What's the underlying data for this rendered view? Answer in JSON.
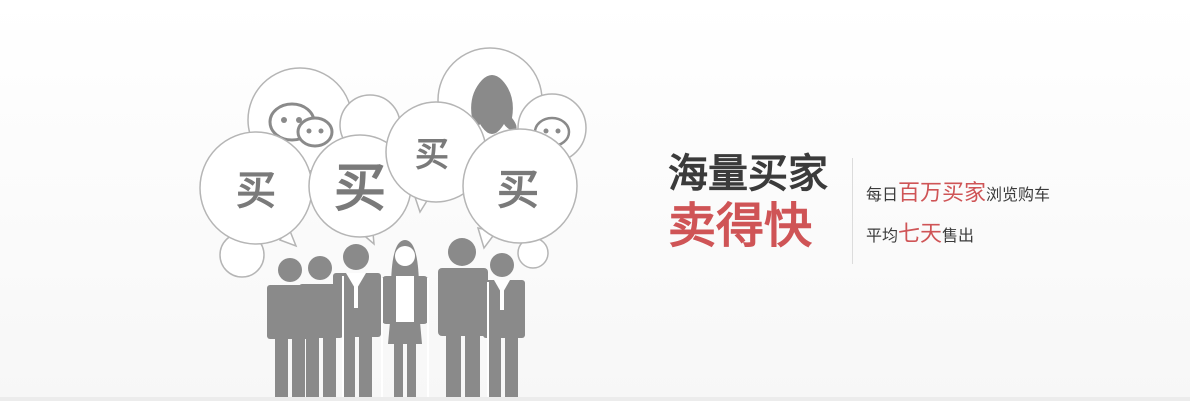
{
  "headline": {
    "line1": "海量买家",
    "line2": "卖得快"
  },
  "subline1": {
    "prefix": "每日",
    "highlight": "百万买家",
    "suffix": "浏览购车"
  },
  "subline2": {
    "prefix": "平均",
    "highlight": "七天",
    "suffix": "售出"
  },
  "bubbles": {
    "b1": "买",
    "b2": "买",
    "b3": "买",
    "b4": "买"
  },
  "colors": {
    "accent": "#cf5456",
    "text": "#3b3b3b",
    "figure": "#8a8a8a",
    "bubble_stroke": "#b5b5b5"
  }
}
